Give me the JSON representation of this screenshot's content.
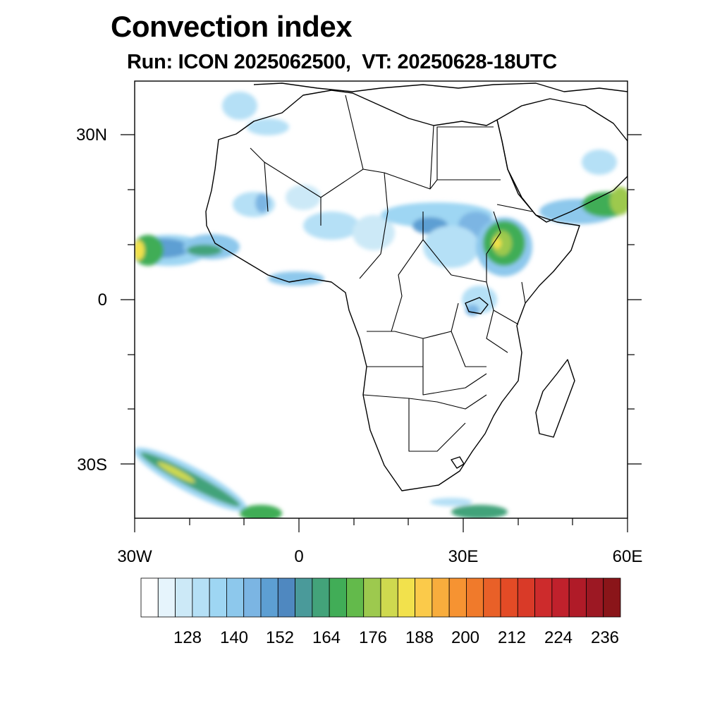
{
  "title": "Convection index",
  "subtitle": "Run: ICON 2025062500,  VT: 20250628-18UTC",
  "map": {
    "region": "Africa",
    "lon_range": [
      -30,
      60
    ],
    "lat_range": [
      -40,
      40
    ],
    "lon_tick_labels": [
      "30W",
      "0",
      "30E",
      "60E"
    ],
    "lat_tick_labels": [
      "30N",
      "0",
      "30S"
    ],
    "colorbar": {
      "tick_labels": [
        "128",
        "140",
        "152",
        "164",
        "176",
        "188",
        "200",
        "212",
        "224",
        "236"
      ],
      "colors": [
        "#ffffff",
        "#e6f4fc",
        "#cce9f7",
        "#b5e0f6",
        "#9ed6f3",
        "#8dc8ec",
        "#7bb5e3",
        "#5d9fd3",
        "#4f88c0",
        "#4a9a9a",
        "#43a37a",
        "#41ad57",
        "#63ba4b",
        "#9dc94e",
        "#cfd94f",
        "#f2e14c",
        "#fbca4a",
        "#f8ad3d",
        "#f69332",
        "#f07a2b",
        "#e96028",
        "#e34b26",
        "#d93a28",
        "#cd2b2c",
        "#c0212c",
        "#b01b28",
        "#9c1823",
        "#8a1519"
      ]
    }
  }
}
